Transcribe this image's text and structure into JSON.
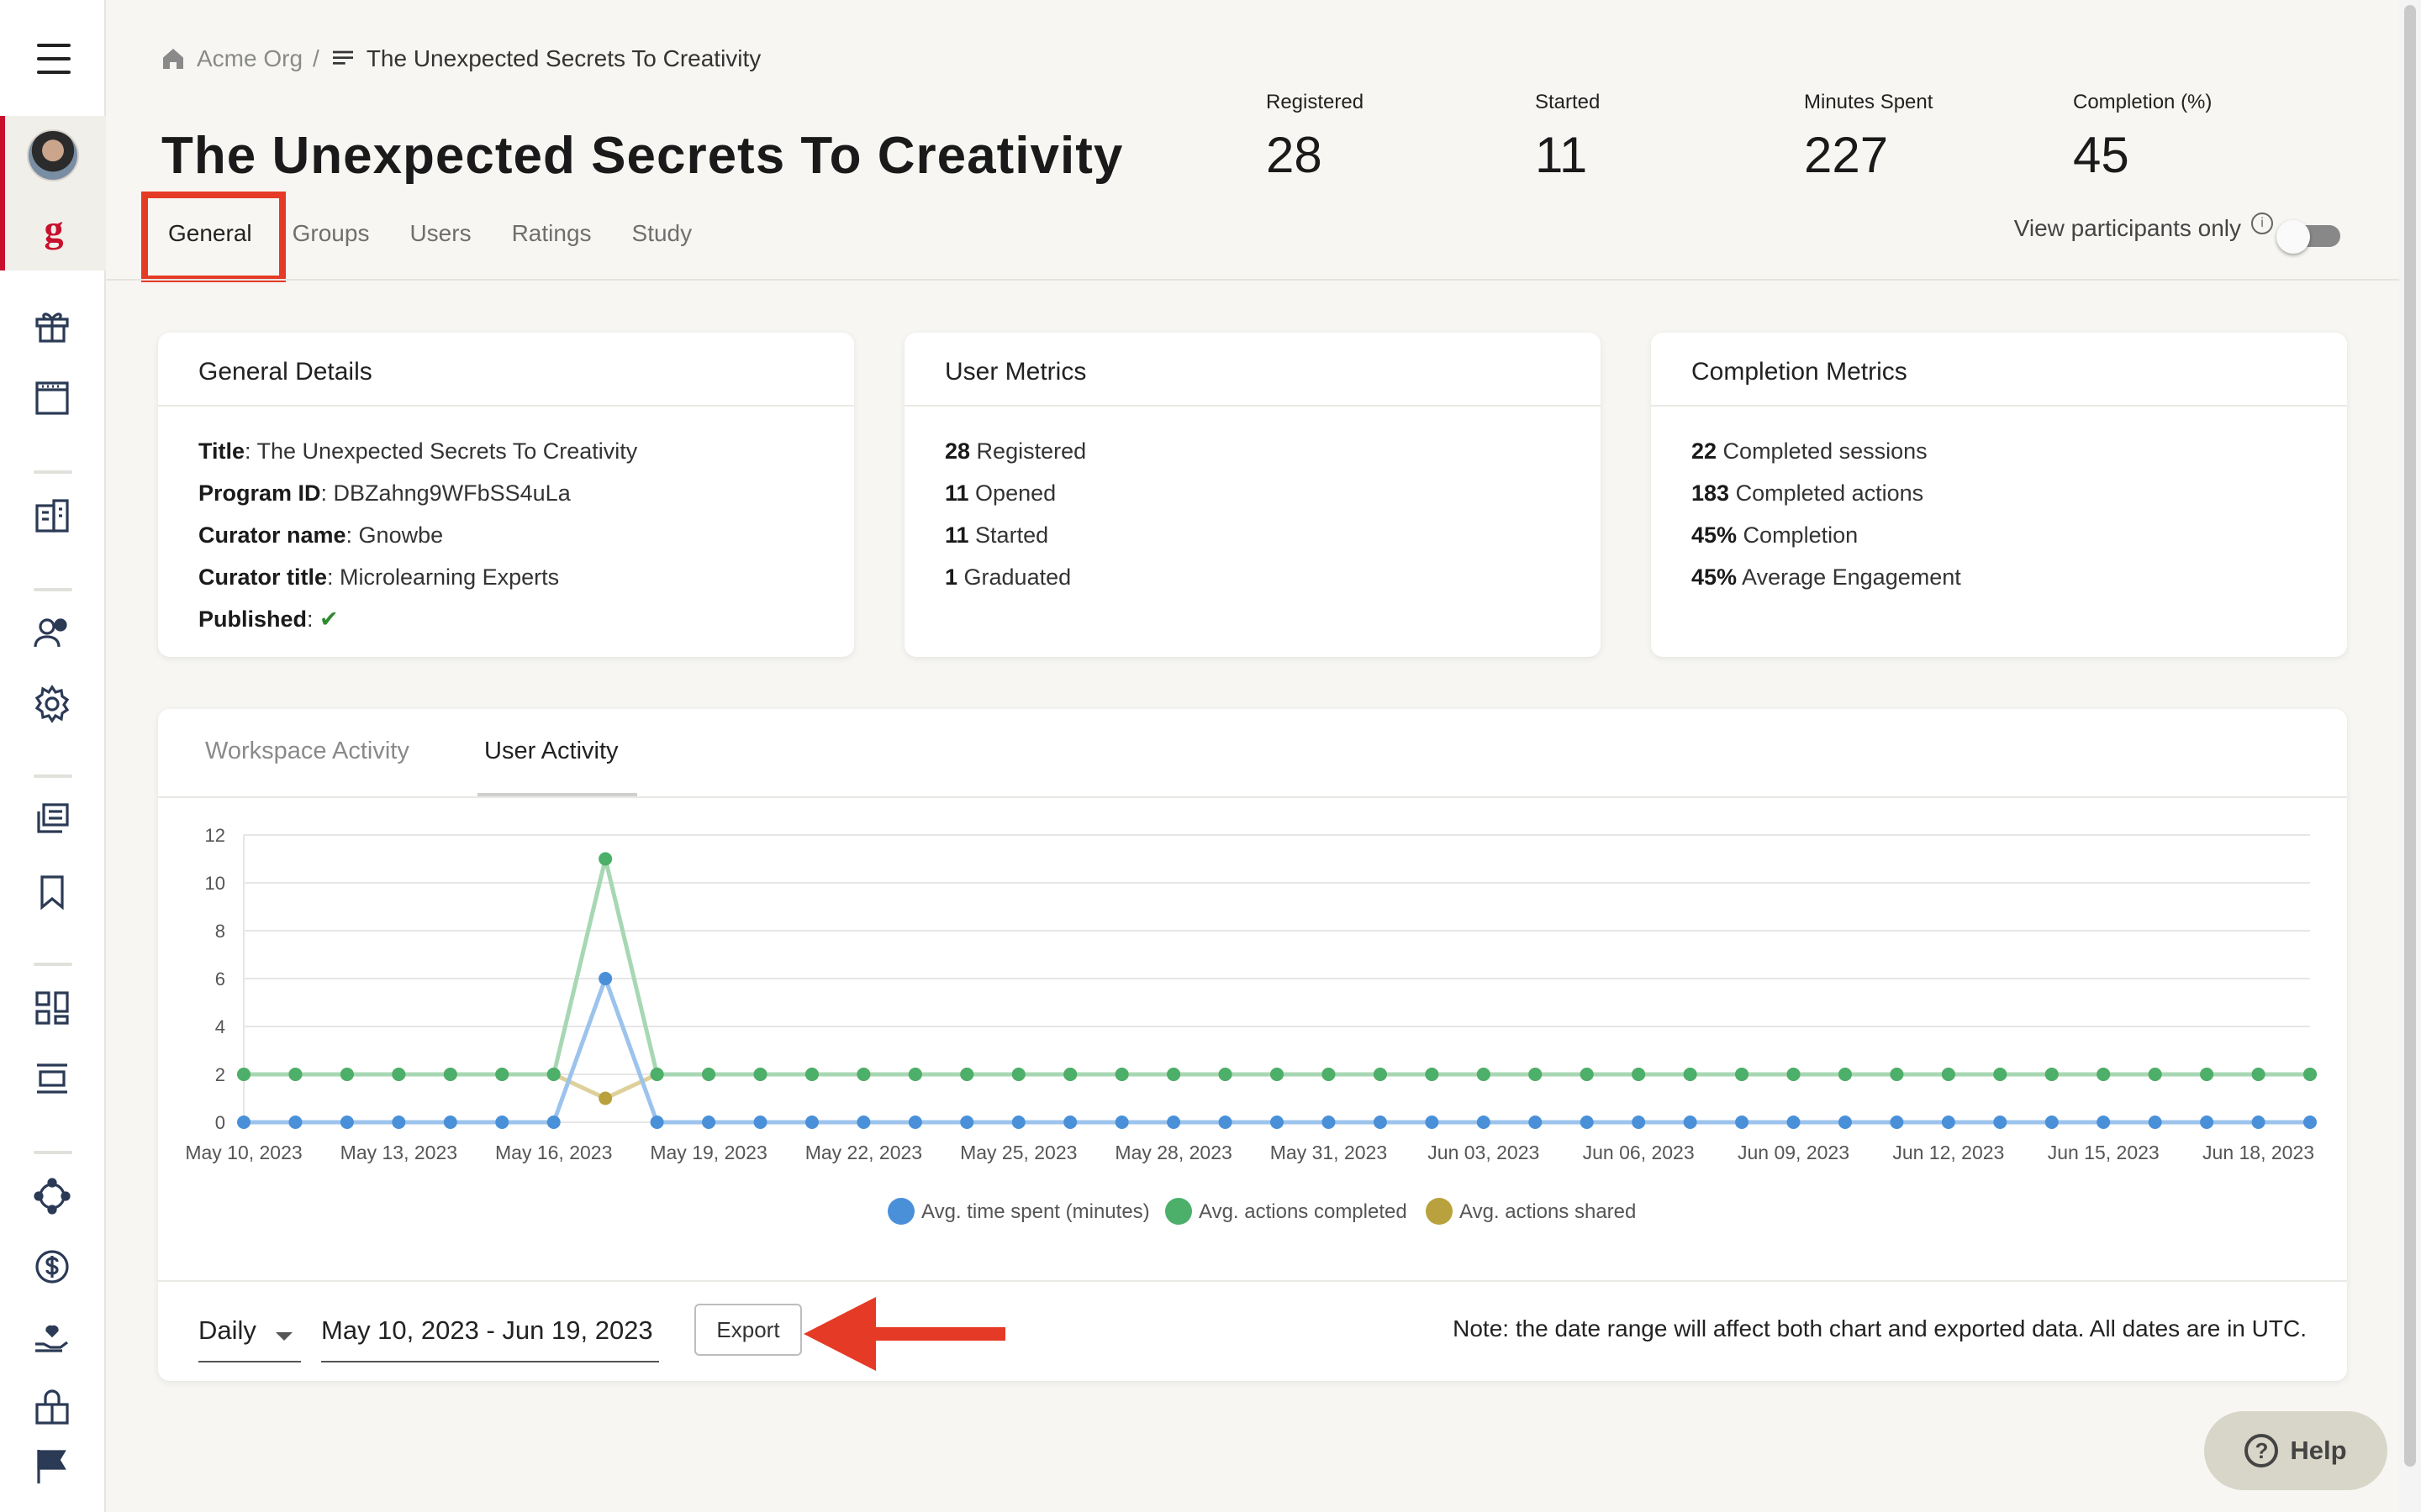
{
  "breadcrumb": {
    "org": "Acme Org",
    "separator": "/",
    "current": "The Unexpected Secrets To Creativity"
  },
  "page_title": "The Unexpected Secrets To Creativity",
  "stats": [
    {
      "label": "Registered",
      "value": "28"
    },
    {
      "label": "Started",
      "value": "11"
    },
    {
      "label": "Minutes Spent",
      "value": "227"
    },
    {
      "label": "Completion (%)",
      "value": "45"
    }
  ],
  "tabs": [
    "General",
    "Groups",
    "Users",
    "Ratings",
    "Study"
  ],
  "active_tab": "General",
  "view_participants": {
    "label": "View participants only",
    "info_icon": "info-icon",
    "enabled": false
  },
  "general_details": {
    "title": "General Details",
    "rows": [
      {
        "key": "Title",
        "value": ": The Unexpected Secrets To Creativity"
      },
      {
        "key": "Program ID",
        "value": ": DBZahng9WFbSS4uLa"
      },
      {
        "key": "Curator name",
        "value": ": Gnowbe"
      },
      {
        "key": "Curator title",
        "value": ": Microlearning Experts"
      },
      {
        "key": "Published",
        "value": ": "
      }
    ],
    "published_mark": "✔"
  },
  "user_metrics": {
    "title": "User Metrics",
    "rows": [
      {
        "key": "28",
        "value": " Registered"
      },
      {
        "key": "11",
        "value": " Opened"
      },
      {
        "key": "11",
        "value": " Started"
      },
      {
        "key": "1",
        "value": " Graduated"
      }
    ]
  },
  "completion_metrics": {
    "title": "Completion Metrics",
    "rows": [
      {
        "key": "22",
        "value": " Completed sessions"
      },
      {
        "key": "183",
        "value": " Completed actions"
      },
      {
        "key": "45%",
        "value": " Completion"
      },
      {
        "key": "45%",
        "value": " Average Engagement"
      }
    ]
  },
  "activity": {
    "tabs": [
      "Workspace Activity",
      "User Activity"
    ],
    "active_tab": "User Activity",
    "granularity": "Daily",
    "date_range": "May 10, 2023 - Jun 19, 2023",
    "export_label": "Export",
    "note": "Note: the date range will affect both chart and exported data. All dates are in UTC."
  },
  "chart_data": {
    "type": "line",
    "x": [
      "May 10, 2023",
      "May 11, 2023",
      "May 12, 2023",
      "May 13, 2023",
      "May 14, 2023",
      "May 15, 2023",
      "May 16, 2023",
      "May 17, 2023",
      "May 18, 2023",
      "May 19, 2023",
      "May 20, 2023",
      "May 21, 2023",
      "May 22, 2023",
      "May 23, 2023",
      "May 24, 2023",
      "May 25, 2023",
      "May 26, 2023",
      "May 27, 2023",
      "May 28, 2023",
      "May 29, 2023",
      "May 30, 2023",
      "May 31, 2023",
      "Jun 01, 2023",
      "Jun 02, 2023",
      "Jun 03, 2023",
      "Jun 04, 2023",
      "Jun 05, 2023",
      "Jun 06, 2023",
      "Jun 07, 2023",
      "Jun 08, 2023",
      "Jun 09, 2023",
      "Jun 10, 2023",
      "Jun 11, 2023",
      "Jun 12, 2023",
      "Jun 13, 2023",
      "Jun 14, 2023",
      "Jun 15, 2023",
      "Jun 16, 2023",
      "Jun 17, 2023",
      "Jun 18, 2023",
      "Jun 19, 2023"
    ],
    "tick_labels": [
      "May 10, 2023",
      "May 13, 2023",
      "May 16, 2023",
      "May 19, 2023",
      "May 22, 2023",
      "May 25, 2023",
      "May 28, 2023",
      "May 31, 2023",
      "Jun 03, 2023",
      "Jun 06, 2023",
      "Jun 09, 2023",
      "Jun 12, 2023",
      "Jun 15, 2023",
      "Jun 18, 2023"
    ],
    "ylim": [
      0,
      12
    ],
    "yticks": [
      0,
      2,
      4,
      6,
      8,
      10,
      12
    ],
    "grid": true,
    "legend_position": "bottom",
    "series": [
      {
        "name": "Avg. time spent (minutes)",
        "color": "#4a90d9",
        "line_color": "#9cc3ec",
        "values": [
          0,
          0,
          0,
          0,
          0,
          0,
          0,
          6,
          0,
          0,
          0,
          0,
          0,
          0,
          0,
          0,
          0,
          0,
          0,
          0,
          0,
          0,
          0,
          0,
          0,
          0,
          0,
          0,
          0,
          0,
          0,
          0,
          0,
          0,
          0,
          0,
          0,
          0,
          0,
          0,
          0
        ]
      },
      {
        "name": "Avg. actions completed",
        "color": "#4caf6a",
        "line_color": "#a7d7b3",
        "values": [
          2,
          2,
          2,
          2,
          2,
          2,
          2,
          11,
          2,
          2,
          2,
          2,
          2,
          2,
          2,
          2,
          2,
          2,
          2,
          2,
          2,
          2,
          2,
          2,
          2,
          2,
          2,
          2,
          2,
          2,
          2,
          2,
          2,
          2,
          2,
          2,
          2,
          2,
          2,
          2,
          2
        ]
      },
      {
        "name": "Avg. actions shared",
        "color": "#b9a23d",
        "line_color": "#ddd09a",
        "values": [
          2,
          2,
          2,
          2,
          2,
          2,
          2,
          1,
          2,
          2,
          2,
          2,
          2,
          2,
          2,
          2,
          2,
          2,
          2,
          2,
          2,
          2,
          2,
          2,
          2,
          2,
          2,
          2,
          2,
          2,
          2,
          2,
          2,
          2,
          2,
          2,
          2,
          2,
          2,
          2,
          2
        ]
      }
    ]
  },
  "help": {
    "label": "Help"
  },
  "colors": {
    "accent_red": "#c8102e",
    "highlight_red": "#e53a26"
  }
}
